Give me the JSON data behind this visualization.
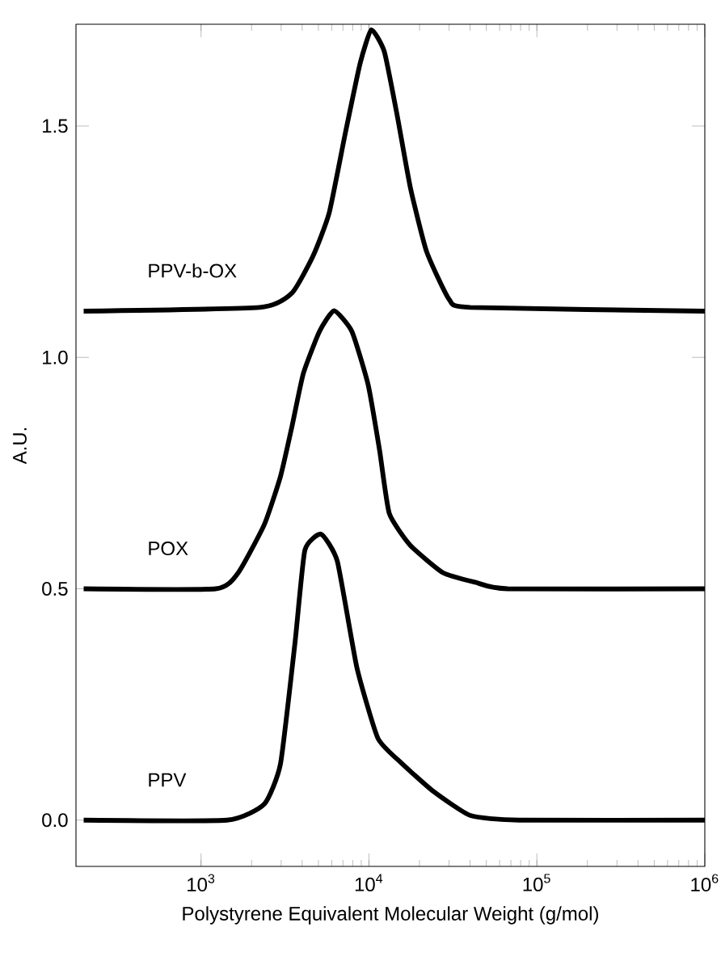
{
  "chart_data": {
    "type": "line",
    "xlabel": "Polystyrene Equivalent Molecular Weight (g/mol)",
    "ylabel": "A.U.",
    "log": "x",
    "xlim": [
      180,
      1000000
    ],
    "ylim": [
      -0.1,
      1.72
    ],
    "xticks": [
      {
        "value": 1000,
        "label": "10$^{3}$"
      },
      {
        "value": 10000,
        "label": "10$^{4}$"
      },
      {
        "value": 100000,
        "label": "10$^{5}$"
      },
      {
        "value": 1000000,
        "label": "10$^{6}$"
      }
    ],
    "yticks": [
      {
        "value": 0,
        "label": "0.0"
      },
      {
        "value": 0.5,
        "label": "0.5"
      },
      {
        "value": 1,
        "label": "1.0"
      },
      {
        "value": 1.5,
        "label": "1.5"
      }
    ],
    "grid": false,
    "legend": false,
    "marker": "none",
    "line_style": "solid",
    "series": [
      {
        "name": "PPV",
        "color": "#000000",
        "x": [
          200,
          1429,
          2383,
          2974,
          3631,
          4150,
          5188,
          6486,
          8471,
          11300,
          15420,
          24100,
          40180,
          78340,
          1000000
        ],
        "values": [
          0,
          0,
          0.035,
          0.122,
          0.385,
          0.583,
          0.618,
          0.559,
          0.33,
          0.177,
          0.125,
          0.0625,
          0.01,
          0,
          0
        ]
      },
      {
        "name": "POX",
        "color": "#000000",
        "x": [
          200,
          1222,
          1668,
          2383,
          2974,
          3476,
          4064,
          5070,
          6194,
          7917,
          9886,
          11560,
          13210,
          17620,
          27540,
          42960,
          66990,
          1000000
        ],
        "values": [
          0.5,
          0.5,
          0.535,
          0.639,
          0.743,
          0.85,
          0.965,
          1.056,
          1.101,
          1.056,
          0.941,
          0.8,
          0.663,
          0.594,
          0.535,
          0.514,
          0.5,
          0.5
        ]
      },
      {
        "name": "PPV-b-OX",
        "color": "#000000",
        "x": [
          200,
          2228,
          3476,
          4645,
          5794,
          7244,
          8851,
          10330,
          12360,
          14760,
          17620,
          22030,
          30060,
          40180,
          1000000
        ],
        "values": [
          1.1,
          1.108,
          1.139,
          1.219,
          1.312,
          1.486,
          1.635,
          1.708,
          1.66,
          1.521,
          1.368,
          1.229,
          1.125,
          1.108,
          1.1
        ]
      }
    ]
  }
}
